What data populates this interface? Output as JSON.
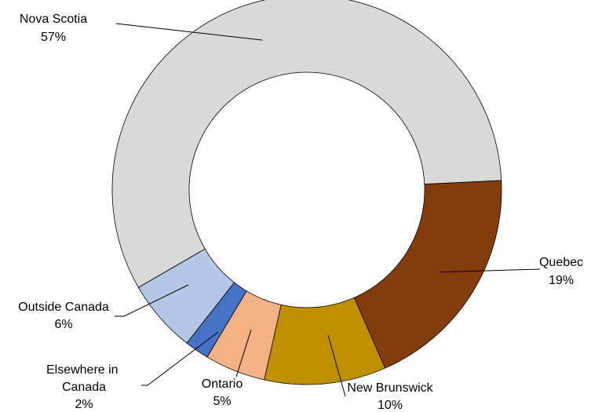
{
  "chart_data": {
    "type": "pie",
    "variant": "donut",
    "legend": "none",
    "slices": [
      {
        "name": "Nova Scotia",
        "value": 57,
        "label": "57%",
        "color": "#d9d9d9"
      },
      {
        "name": "Quebec",
        "value": 19,
        "label": "19%",
        "color": "#843c0c"
      },
      {
        "name": "New Brunswick",
        "value": 10,
        "label": "10%",
        "color": "#bf9000"
      },
      {
        "name": "Ontario",
        "value": 5,
        "label": "5%",
        "color": "#f4b183"
      },
      {
        "name": "Elsewhere in Canada",
        "value": 2,
        "label": "2%",
        "color": "#4472c4"
      },
      {
        "name": "Outside Canada",
        "value": 6,
        "label": "6%",
        "color": "#b4c7e7"
      }
    ]
  }
}
